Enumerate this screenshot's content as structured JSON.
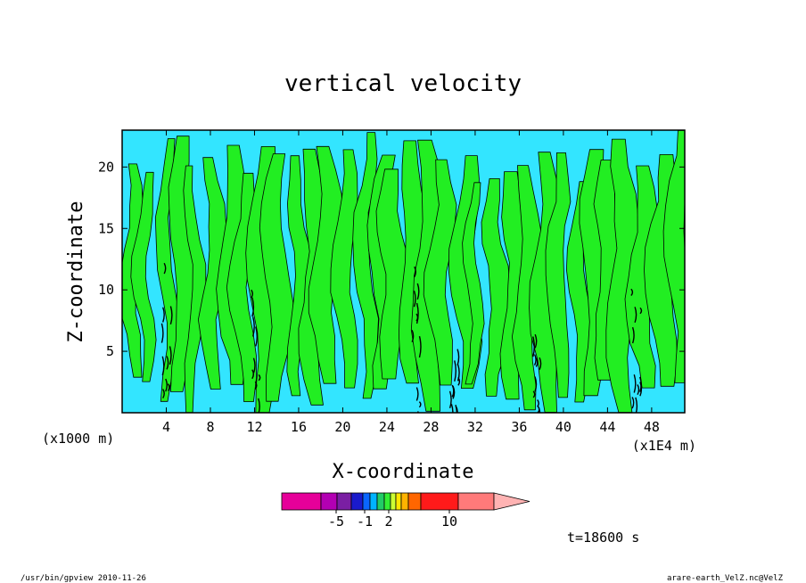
{
  "chart_data": {
    "type": "heatmap",
    "title": "vertical velocity",
    "xlabel": "X-coordinate",
    "ylabel": "Z-coordinate",
    "x_unit": "(x1E4 m)",
    "y_unit": "(x1000 m)",
    "xlim": [
      0,
      51
    ],
    "ylim": [
      0,
      23
    ],
    "x_ticks": [
      4,
      8,
      12,
      16,
      20,
      24,
      28,
      32,
      36,
      40,
      44,
      48
    ],
    "y_ticks": [
      5,
      10,
      15,
      20
    ],
    "grid": false,
    "field_levels": [
      {
        "range": "< 0",
        "color": "#33e5ff"
      },
      {
        "range": ">= 0",
        "color": "#22ee22"
      }
    ],
    "features": [
      {
        "type": "updraft_column",
        "x": 4,
        "z_top": 12.5
      },
      {
        "type": "updraft_column",
        "x": 12,
        "z_top": 12
      },
      {
        "type": "updraft_column",
        "x": 26.5,
        "z_top": 12
      },
      {
        "type": "updraft_column",
        "x": 30,
        "z_top": 6
      },
      {
        "type": "updraft_column",
        "x": 37.5,
        "z_top": 7
      },
      {
        "type": "updraft_column",
        "x": 46.5,
        "z_top": 11
      }
    ]
  },
  "colorbar": {
    "colors": [
      "#e60099",
      "#b300b3",
      "#7a1fa3",
      "#1a1acc",
      "#0a66ff",
      "#00b3ff",
      "#22cc66",
      "#33ee33",
      "#ccff33",
      "#ffe600",
      "#ffb300",
      "#ff6600",
      "#ff1a1a",
      "#ff7a7a"
    ],
    "extend_color": "#ffb3b3",
    "tick_labels": [
      "-5",
      "-1",
      "2",
      "10"
    ],
    "tick_values": [
      -5,
      -1,
      2,
      10
    ]
  },
  "time_label": "t=18600 s",
  "footer": {
    "left": "/usr/bin/gpview  2010-11-26",
    "right": "arare-earth_VelZ.nc@VelZ"
  }
}
